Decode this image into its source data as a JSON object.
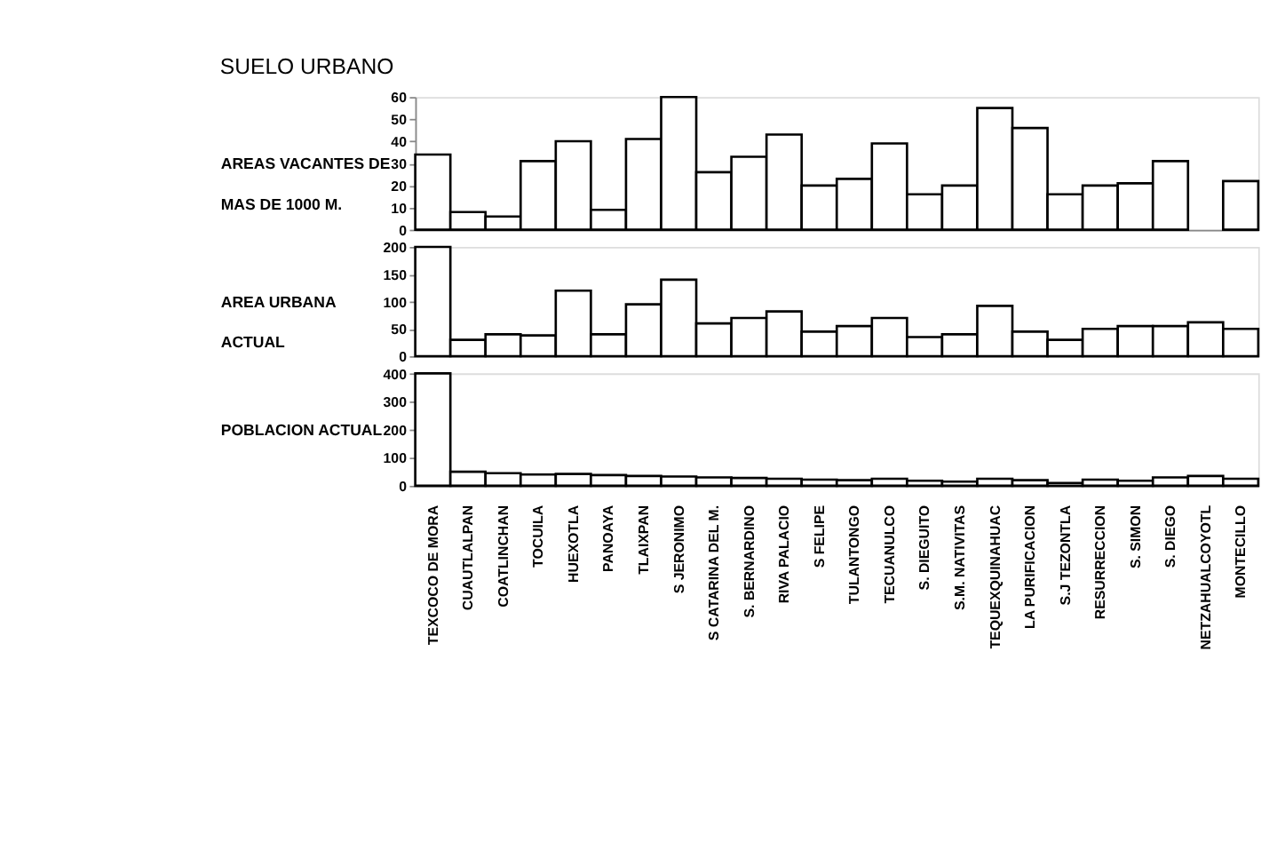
{
  "chart_data": [
    {
      "type": "bar",
      "title": "SUELO URBANO",
      "ylabel": "AREAS VACANTES DE MAS DE 1000 M.",
      "tick_labels": "y",
      "color": "#ffffff",
      "grid": false,
      "categories": [
        null,
        null,
        null,
        null,
        null,
        null,
        null,
        null,
        null,
        null,
        null,
        null,
        null,
        null,
        null,
        null,
        null,
        null,
        null,
        null,
        null,
        null,
        null,
        null
      ],
      "values": [
        34,
        8,
        6,
        31,
        40,
        9,
        41,
        60,
        26,
        33,
        43,
        20,
        23,
        39,
        16,
        20,
        55,
        46,
        16,
        20,
        21,
        31,
        null,
        22
      ],
      "ylim": [
        0,
        60
      ],
      "yticks": [
        0,
        10,
        20,
        30,
        40,
        50,
        60
      ]
    },
    {
      "type": "bar",
      "ylabel": "AREA URBANA ACTUAL",
      "tick_labels": "y",
      "color": "#ffffff",
      "grid": false,
      "categories": [
        null,
        null,
        null,
        null,
        null,
        null,
        null,
        null,
        null,
        null,
        null,
        null,
        null,
        null,
        null,
        null,
        null,
        null,
        null,
        null,
        null,
        null,
        null,
        null
      ],
      "values": [
        200,
        30,
        40,
        38,
        120,
        40,
        95,
        140,
        60,
        70,
        82,
        45,
        55,
        70,
        35,
        40,
        92,
        45,
        30,
        50,
        55,
        55,
        62,
        50
      ],
      "ylim": [
        0,
        200
      ],
      "yticks": [
        0,
        50,
        100,
        150,
        200
      ]
    },
    {
      "type": "bar",
      "ylabel": "POBLACION ACTUAL",
      "color": "#ffffff",
      "grid": false,
      "categories": [
        "TEXCOCO DE MORA",
        "CUAUTLALPAN",
        "COATLINCHAN",
        "TOCUILA",
        "HUEXOTLA",
        "PANOAYA",
        "TLAIXPAN",
        "S JERONIMO",
        "S CATARINA DEL M.",
        "S. BERNARDINO",
        "RIVA PALACIO",
        "S FELIPE",
        "TULANTONGO",
        "TECUANULCO",
        "S. DIEGUITO",
        "S.M. NATIVITAS",
        "TEQUEXQUINAHUAC",
        "LA PURIFICACION",
        "S.J TEZONTLA",
        "RESURRECCION",
        "S. SIMON",
        "S. DIEGO",
        "NETZAHUALCOYOTL",
        "MONTECILLO"
      ],
      "values": [
        400,
        50,
        45,
        40,
        42,
        38,
        35,
        33,
        30,
        28,
        25,
        22,
        20,
        25,
        18,
        15,
        25,
        20,
        10,
        22,
        18,
        30,
        35,
        25
      ],
      "ylim": [
        0,
        400
      ],
      "yticks": [
        0,
        100,
        200,
        300,
        400
      ]
    }
  ]
}
